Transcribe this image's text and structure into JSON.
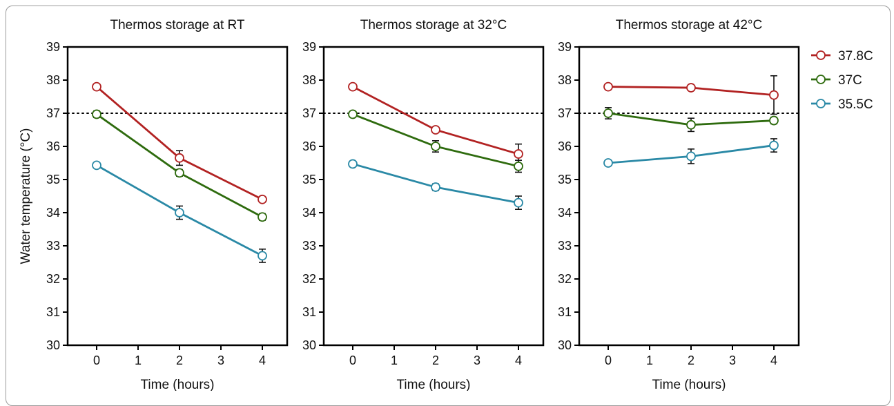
{
  "chart_data": {
    "type": "line",
    "ylabel": "Water temperature (°C)",
    "xlabel": "Time (hours)",
    "ylim": [
      30,
      39
    ],
    "yticks": [
      30,
      31,
      32,
      33,
      34,
      35,
      36,
      37,
      38,
      39
    ],
    "xlim": [
      -0.7,
      4.6
    ],
    "xticks": [
      0,
      1,
      2,
      3,
      4
    ],
    "reference_line": {
      "y": 37,
      "style": "dotted"
    },
    "legend": {
      "position": "right",
      "entries": [
        "37.8C",
        "37C",
        "35.5C"
      ]
    },
    "series_colors": {
      "37.8C": "#b22222",
      "37C": "#2e6b0e",
      "35.5C": "#2a89a6"
    },
    "panels": [
      {
        "title": "Thermos storage at RT",
        "x": [
          0,
          2,
          4
        ],
        "series": [
          {
            "name": "37.8C",
            "values": [
              37.8,
              35.65,
              34.4
            ],
            "errors": [
              0.03,
              0.22,
              0.08
            ]
          },
          {
            "name": "37C",
            "values": [
              36.97,
              35.2,
              33.87
            ],
            "errors": [
              0.1,
              0.1,
              0.1
            ]
          },
          {
            "name": "35.5C",
            "values": [
              35.43,
              34.0,
              32.7
            ],
            "errors": [
              0.03,
              0.2,
              0.2
            ]
          }
        ]
      },
      {
        "title": "Thermos storage at 32°C",
        "x": [
          0,
          2,
          4
        ],
        "series": [
          {
            "name": "37.8C",
            "values": [
              37.8,
              36.5,
              35.77
            ],
            "errors": [
              0.03,
              0.08,
              0.3
            ]
          },
          {
            "name": "37C",
            "values": [
              36.97,
              36.0,
              35.4
            ],
            "errors": [
              0.05,
              0.17,
              0.18
            ]
          },
          {
            "name": "35.5C",
            "values": [
              35.47,
              34.77,
              34.3
            ],
            "errors": [
              0.03,
              0.1,
              0.2
            ]
          }
        ]
      },
      {
        "title": "Thermos storage at 42°C",
        "x": [
          0,
          2,
          4
        ],
        "series": [
          {
            "name": "37.8C",
            "values": [
              37.8,
              37.77,
              37.55
            ],
            "errors": [
              0.03,
              0.05,
              0.58
            ]
          },
          {
            "name": "37C",
            "values": [
              37.0,
              36.65,
              36.78
            ],
            "errors": [
              0.17,
              0.2,
              0.1
            ]
          },
          {
            "name": "35.5C",
            "values": [
              35.5,
              35.7,
              36.03
            ],
            "errors": [
              0.03,
              0.22,
              0.2
            ]
          }
        ]
      }
    ]
  }
}
